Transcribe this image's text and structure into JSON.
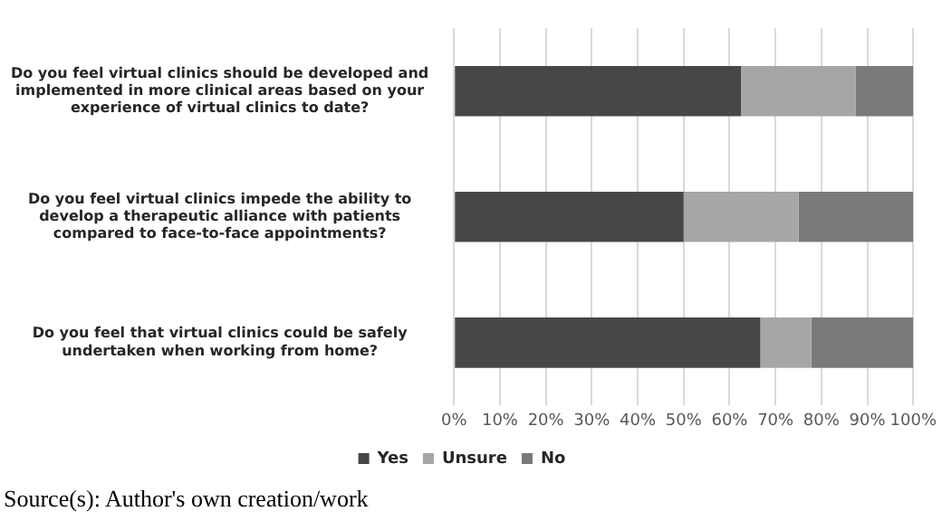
{
  "chart_data": {
    "type": "bar",
    "orientation": "horizontal",
    "stacked": true,
    "categories": [
      "Do you feel virtual clinics should be developed and implemented in more clinical areas based on your experience of virtual clinics to date?",
      "Do you feel virtual clinics impede the ability to develop a therapeutic alliance with patients compared to face-to-face appointments?",
      "Do you feel that virtual clinics could be safely undertaken when working from home?"
    ],
    "series": [
      {
        "name": "Yes",
        "color": "#474747",
        "values": [
          62.5,
          50,
          66.7
        ]
      },
      {
        "name": "Unsure",
        "color": "#a6a6a6",
        "values": [
          25,
          25,
          11.1
        ]
      },
      {
        "name": "No",
        "color": "#7a7a7a",
        "values": [
          12.5,
          25,
          22.2
        ]
      }
    ],
    "xlim": [
      0,
      100
    ],
    "xticks": [
      {
        "value": 0,
        "label": "0%"
      },
      {
        "value": 10,
        "label": "10%"
      },
      {
        "value": 20,
        "label": "20%"
      },
      {
        "value": 30,
        "label": "30%"
      },
      {
        "value": 40,
        "label": "40%"
      },
      {
        "value": 50,
        "label": "50%"
      },
      {
        "value": 60,
        "label": "60%"
      },
      {
        "value": 70,
        "label": "70%"
      },
      {
        "value": 80,
        "label": "80%"
      },
      {
        "value": 90,
        "label": "90%"
      },
      {
        "value": 100,
        "label": "100%"
      }
    ],
    "grid": "x",
    "legend": "bottom",
    "annotations": [
      "Source(s): Author's own creation/work"
    ]
  }
}
